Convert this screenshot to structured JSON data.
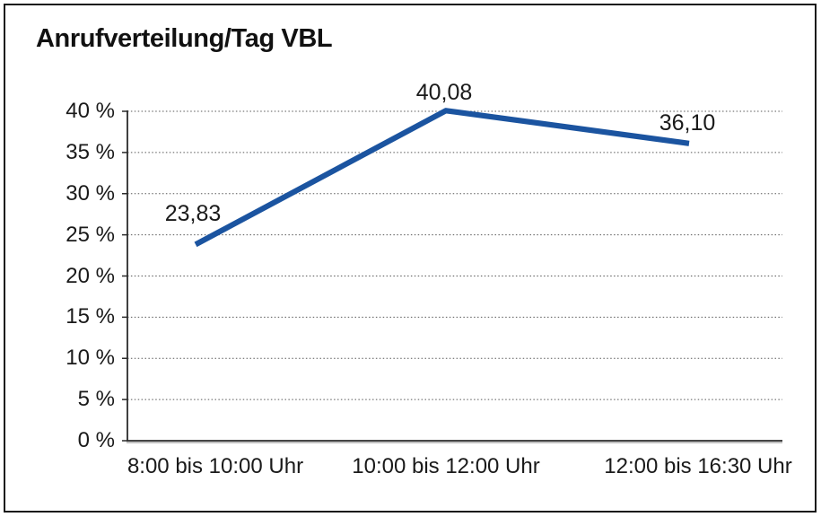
{
  "window": {
    "background_color": "#ffffff",
    "border_color": "#1a1a1a"
  },
  "chart_data": {
    "type": "line",
    "title": "Anrufverteilung/Tag VBL",
    "categories": [
      "8:00 bis 10:00 Uhr",
      "10:00 bis 12:00 Uhr",
      "12:00 bis 16:30 Uhr"
    ],
    "series": [
      {
        "values": [
          23.83,
          40.08,
          36.1
        ],
        "data_labels": [
          "23,83",
          "40,08",
          "36,10"
        ],
        "color": "#1b54a0"
      }
    ],
    "xlabel": "",
    "ylabel": "",
    "ylim": [
      0,
      40
    ],
    "ytick_step": 5,
    "ytick_labels": [
      "0 %",
      "5 %",
      "10 %",
      "15 %",
      "20 %",
      "25 %",
      "30 %",
      "35 %",
      "40 %"
    ],
    "grid": "horizontal-dotted",
    "legend": "none",
    "grid_color": "#595959",
    "axis_color": "#2b2b2b",
    "text_color": "#1a1a1a"
  }
}
